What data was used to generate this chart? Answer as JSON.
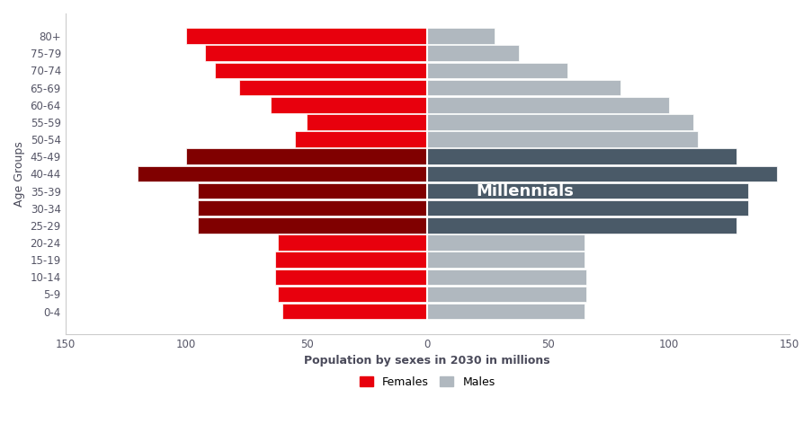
{
  "age_groups": [
    "0-4",
    "5-9",
    "10-14",
    "15-19",
    "20-24",
    "25-29",
    "30-34",
    "35-39",
    "40-44",
    "45-49",
    "50-54",
    "55-59",
    "60-64",
    "65-69",
    "70-74",
    "75-79",
    "80+"
  ],
  "females": [
    60,
    62,
    63,
    63,
    62,
    95,
    95,
    95,
    120,
    100,
    55,
    50,
    65,
    78,
    88,
    92,
    100
  ],
  "males": [
    65,
    66,
    66,
    65,
    65,
    128,
    133,
    133,
    145,
    128,
    112,
    110,
    100,
    80,
    58,
    38,
    28
  ],
  "millennials_groups": [
    "25-29",
    "30-34",
    "35-39",
    "40-44",
    "45-49"
  ],
  "female_regular_color": "#e8000d",
  "female_millennial_color": "#800000",
  "male_regular_color": "#b0b8bf",
  "male_millennial_color": "#4a5a68",
  "xlabel": "Population by sexes in 2030 in millions",
  "ylabel": "Age Groups",
  "xlim": [
    -150,
    150
  ],
  "annotation_text": "Millennials",
  "background_color": "#ffffff",
  "legend_females": "Females",
  "legend_males": "Males"
}
